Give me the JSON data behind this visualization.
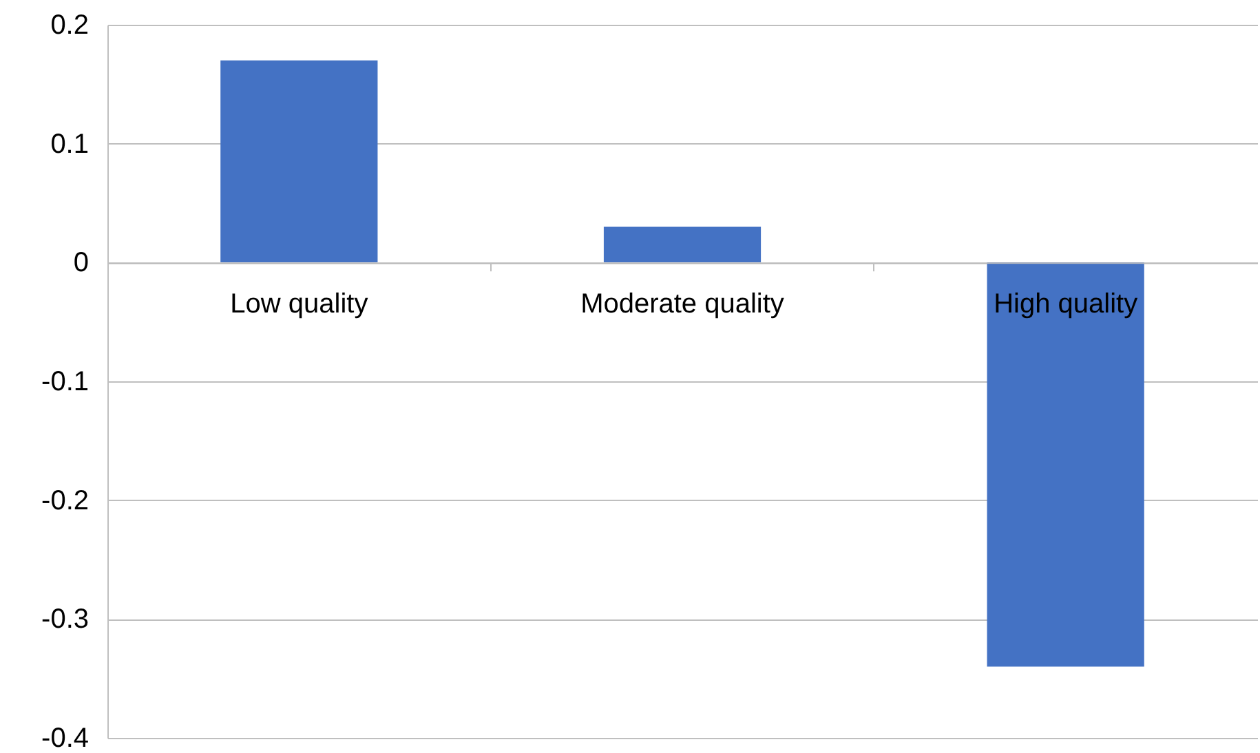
{
  "chart_data": {
    "type": "bar",
    "categories": [
      "Low quality",
      "Moderate quality",
      "High quality"
    ],
    "values": [
      0.17,
      0.03,
      -0.34
    ],
    "color": "#4472c4",
    "ylim": [
      -0.4,
      0.2
    ],
    "yticks": [
      -0.4,
      -0.3,
      -0.2,
      -0.1,
      0,
      0.1,
      0.2
    ],
    "grid": "y",
    "legend": false
  }
}
